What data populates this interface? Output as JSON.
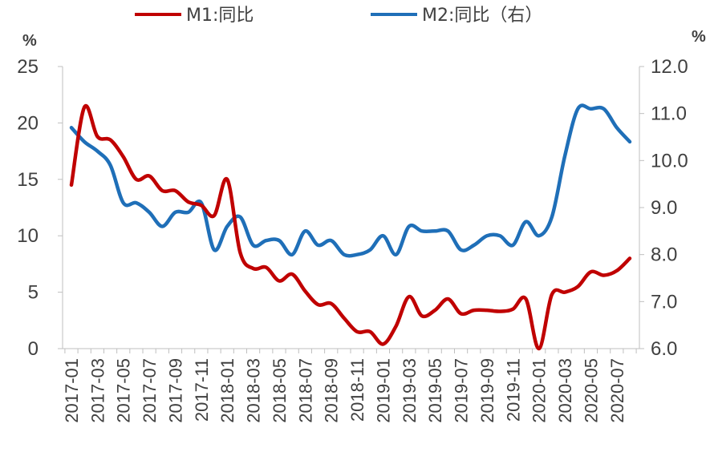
{
  "chart_data": {
    "type": "line",
    "x": [
      "2017-01",
      "2017-02",
      "2017-03",
      "2017-04",
      "2017-05",
      "2017-06",
      "2017-07",
      "2017-08",
      "2017-09",
      "2017-10",
      "2017-11",
      "2017-12",
      "2018-01",
      "2018-02",
      "2018-03",
      "2018-04",
      "2018-05",
      "2018-06",
      "2018-07",
      "2018-08",
      "2018-09",
      "2018-10",
      "2018-11",
      "2018-12",
      "2019-01",
      "2019-02",
      "2019-03",
      "2019-04",
      "2019-05",
      "2019-06",
      "2019-07",
      "2019-08",
      "2019-09",
      "2019-10",
      "2019-11",
      "2019-12",
      "2020-01",
      "2020-02",
      "2020-03",
      "2020-04",
      "2020-05",
      "2020-06",
      "2020-07",
      "2020-08"
    ],
    "x_tick_labels": [
      "2017-01",
      "2017-03",
      "2017-05",
      "2017-07",
      "2017-09",
      "2017-11",
      "2018-01",
      "2018-03",
      "2018-05",
      "2018-07",
      "2018-09",
      "2018-11",
      "2019-01",
      "2019-03",
      "2019-05",
      "2019-07",
      "2019-09",
      "2019-11",
      "2020-01",
      "2020-03",
      "2020-05",
      "2020-07"
    ],
    "series": [
      {
        "name": "M1:同比",
        "axis": "left",
        "color": "#C00000",
        "values": [
          14.5,
          21.4,
          18.8,
          18.5,
          17.0,
          15.0,
          15.3,
          14.0,
          14.0,
          13.0,
          12.7,
          11.8,
          15.0,
          8.5,
          7.1,
          7.2,
          6.0,
          6.6,
          5.1,
          3.9,
          4.0,
          2.7,
          1.5,
          1.5,
          0.4,
          2.0,
          4.6,
          2.9,
          3.4,
          4.4,
          3.1,
          3.4,
          3.4,
          3.3,
          3.5,
          4.4,
          0.0,
          4.8,
          5.0,
          5.5,
          6.8,
          6.5,
          6.9,
          8.0
        ]
      },
      {
        "name": "M2:同比（右）",
        "axis": "right",
        "color": "#1F6FB8",
        "values": [
          10.7,
          10.4,
          10.2,
          9.9,
          9.1,
          9.1,
          8.9,
          8.6,
          8.9,
          8.9,
          9.1,
          8.1,
          8.6,
          8.8,
          8.2,
          8.3,
          8.3,
          8.0,
          8.5,
          8.2,
          8.3,
          8.0,
          8.0,
          8.1,
          8.4,
          8.0,
          8.6,
          8.5,
          8.5,
          8.5,
          8.1,
          8.2,
          8.4,
          8.4,
          8.2,
          8.7,
          8.4,
          8.8,
          10.1,
          11.1,
          11.1,
          11.1,
          10.7,
          10.4
        ]
      }
    ],
    "y_left": {
      "label": "%",
      "min": 0,
      "max": 25,
      "ticks": [
        "0",
        "5",
        "10",
        "15",
        "20",
        "25"
      ]
    },
    "y_right": {
      "label": "%",
      "min": 6.0,
      "max": 12.0,
      "ticks": [
        "6.0",
        "7.0",
        "8.0",
        "9.0",
        "10.0",
        "11.0",
        "12.0"
      ]
    },
    "legend": {
      "placement": "top-center",
      "entries": [
        "M1:同比",
        "M2:同比（右）"
      ]
    },
    "grid": false
  }
}
